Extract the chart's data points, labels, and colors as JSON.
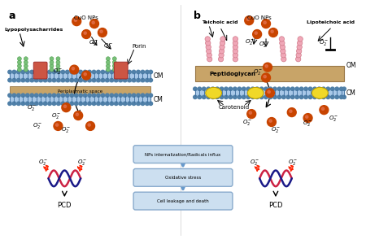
{
  "title_a": "a",
  "title_b": "b",
  "label_cuonps_a": "CuO NPs",
  "label_cuonps_b": "CuO NPs",
  "label_lps": "Lypopolysacharrides",
  "label_porin": "Porin",
  "label_om": "OM",
  "label_cm": "CM",
  "label_peri": "Periplasmatic space",
  "label_teichoic": "Teichoic acid",
  "label_lipoteichoic": "Lipoteichoic acid",
  "label_peptidoglycan": "Peptidoglycan",
  "label_carotenoid": "Carotenoid",
  "label_box1": "NPs internalization/Radicals influx",
  "label_box2": "Oxidative stress",
  "label_box3": "Cell leakage and death",
  "label_pcd_a": "PCD",
  "label_pcd_b": "PCD",
  "bg_color": "#ffffff",
  "np_color": "#c84400",
  "membrane_blue": "#a8c8e8",
  "membrane_dark": "#6090b8",
  "membrane_head": "#5080a8",
  "peptidoglycan_color": "#c8a468",
  "box_fill": "#ccdff0",
  "box_edge": "#88aacc",
  "box_arrow": "#6699cc",
  "lps_green": "#78c078",
  "lps_dark": "#50a050",
  "porin_red": "#cc5544",
  "carotenoid_yellow": "#f0d828",
  "teichoic_pink": "#f0a8b8",
  "teichoic_dark": "#d07888",
  "dna_red": "#cc2244",
  "dna_blue": "#1a1a88",
  "dna_white": "#ffffff",
  "text_black": "#111111"
}
